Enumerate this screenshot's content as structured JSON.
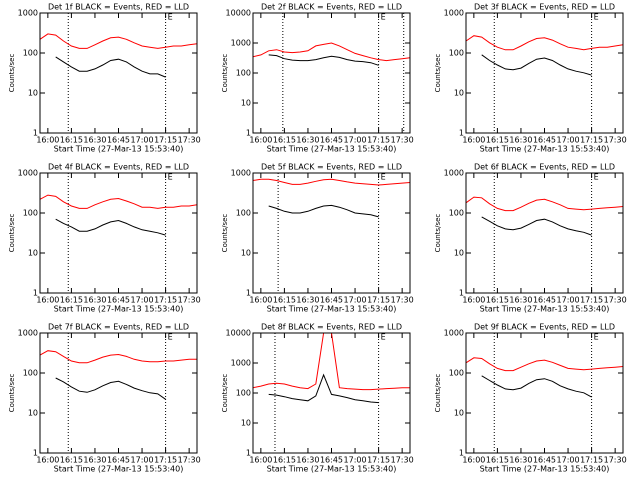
{
  "chart_data": [
    {
      "type": "line",
      "title": "Det 1f BLACK = Events, RED = LLD",
      "xlabel": "Start Time (27-Mar-13 15:53:40)",
      "ylabel": "Counts/sec",
      "log_y": true,
      "x": [
        "15:55",
        "16:00",
        "16:05",
        "16:10",
        "16:15",
        "16:20",
        "16:25",
        "16:30",
        "16:35",
        "16:40",
        "16:45",
        "16:50",
        "16:55",
        "17:00",
        "17:05",
        "17:10",
        "17:15",
        "17:20",
        "17:25",
        "17:30",
        "17:35"
      ],
      "series": [
        {
          "color": "#ff0000",
          "values": [
            220,
            300,
            280,
            200,
            150,
            130,
            130,
            160,
            200,
            240,
            250,
            220,
            180,
            150,
            140,
            130,
            140,
            150,
            150,
            160,
            170
          ]
        },
        {
          "color": "#000000",
          "values": [
            null,
            null,
            80,
            60,
            45,
            35,
            35,
            40,
            50,
            65,
            70,
            60,
            45,
            35,
            30,
            30,
            25,
            null,
            null,
            null,
            null
          ]
        }
      ],
      "xlim": [
        "15:55",
        "17:35"
      ],
      "xticks": [
        "16:00",
        "16:15",
        "16:30",
        "16:45",
        "17:00",
        "17:15",
        "17:30"
      ],
      "ylim": [
        1,
        1000
      ],
      "yticks": [
        1,
        10,
        100,
        1000
      ],
      "vlines": [
        "16:13",
        "17:15"
      ],
      "annotations": [
        {
          "x": "17:15",
          "text": "E"
        }
      ]
    },
    {
      "type": "line",
      "title": "Det 2f BLACK = Events, RED = LLD",
      "xlabel": "Start Time (27-Mar-13 15:53:40)",
      "ylabel": "Counts/sec",
      "log_y": true,
      "x": [
        "15:55",
        "16:00",
        "16:05",
        "16:10",
        "16:15",
        "16:20",
        "16:25",
        "16:30",
        "16:35",
        "16:40",
        "16:45",
        "16:50",
        "16:55",
        "17:00",
        "17:05",
        "17:10",
        "17:15",
        "17:20",
        "17:25",
        "17:30",
        "17:35"
      ],
      "series": [
        {
          "color": "#ff0000",
          "values": [
            350,
            400,
            550,
            600,
            500,
            480,
            500,
            550,
            800,
            900,
            1000,
            800,
            600,
            450,
            380,
            320,
            280,
            260,
            280,
            300,
            320
          ]
        },
        {
          "color": "#000000",
          "values": [
            null,
            null,
            400,
            380,
            300,
            270,
            260,
            260,
            280,
            320,
            360,
            330,
            280,
            250,
            240,
            220,
            180,
            null,
            null,
            null,
            null
          ]
        }
      ],
      "xlim": [
        "15:55",
        "17:35"
      ],
      "xticks": [
        "16:00",
        "16:15",
        "16:30",
        "16:45",
        "17:00",
        "17:15",
        "17:30"
      ],
      "ylim": [
        1,
        10000
      ],
      "yticks": [
        1,
        10,
        100,
        1000,
        10000
      ],
      "vlines": [
        "16:14",
        "17:15",
        "17:31"
      ],
      "annotations": [
        {
          "x": "17:15",
          "text": "E"
        }
      ]
    },
    {
      "type": "line",
      "title": "Det 3f BLACK = Events, RED = LLD",
      "xlabel": "Start Time (27-Mar-13 15:53:40)",
      "ylabel": "Counts/sec",
      "log_y": true,
      "x": [
        "15:55",
        "16:00",
        "16:05",
        "16:10",
        "16:15",
        "16:20",
        "16:25",
        "16:30",
        "16:35",
        "16:40",
        "16:45",
        "16:50",
        "16:55",
        "17:00",
        "17:05",
        "17:10",
        "17:15",
        "17:20",
        "17:25",
        "17:30",
        "17:35"
      ],
      "series": [
        {
          "color": "#ff0000",
          "values": [
            200,
            270,
            250,
            180,
            140,
            120,
            120,
            150,
            190,
            230,
            240,
            210,
            170,
            140,
            130,
            120,
            130,
            140,
            140,
            150,
            160
          ]
        },
        {
          "color": "#000000",
          "values": [
            null,
            null,
            90,
            65,
            50,
            40,
            38,
            42,
            55,
            70,
            75,
            65,
            50,
            40,
            35,
            32,
            28,
            null,
            null,
            null,
            null
          ]
        }
      ],
      "xlim": [
        "15:55",
        "17:35"
      ],
      "xticks": [
        "16:00",
        "16:15",
        "16:30",
        "16:45",
        "17:00",
        "17:15",
        "17:30"
      ],
      "ylim": [
        1,
        1000
      ],
      "yticks": [
        1,
        10,
        100,
        1000
      ],
      "vlines": [
        "16:13",
        "17:15"
      ],
      "annotations": [
        {
          "x": "17:15",
          "text": "E"
        }
      ]
    },
    {
      "type": "line",
      "title": "Det 4f BLACK = Events, RED = LLD",
      "xlabel": "Start Time (27-Mar-13 15:53:40)",
      "ylabel": "Counts/sec",
      "log_y": true,
      "x": [
        "15:55",
        "16:00",
        "16:05",
        "16:10",
        "16:15",
        "16:20",
        "16:25",
        "16:30",
        "16:35",
        "16:40",
        "16:45",
        "16:50",
        "16:55",
        "17:00",
        "17:05",
        "17:10",
        "17:15",
        "17:20",
        "17:25",
        "17:30",
        "17:35"
      ],
      "series": [
        {
          "color": "#ff0000",
          "values": [
            220,
            280,
            260,
            190,
            150,
            130,
            130,
            160,
            190,
            220,
            230,
            200,
            170,
            140,
            140,
            130,
            140,
            140,
            150,
            150,
            160
          ]
        },
        {
          "color": "#000000",
          "values": [
            null,
            null,
            70,
            55,
            45,
            35,
            35,
            40,
            50,
            60,
            65,
            55,
            45,
            38,
            35,
            32,
            28,
            null,
            null,
            null,
            null
          ]
        }
      ],
      "xlim": [
        "15:55",
        "17:35"
      ],
      "xticks": [
        "16:00",
        "16:15",
        "16:30",
        "16:45",
        "17:00",
        "17:15",
        "17:30"
      ],
      "ylim": [
        1,
        1000
      ],
      "yticks": [
        1,
        10,
        100,
        1000
      ],
      "vlines": [
        "16:13",
        "17:15"
      ],
      "annotations": [
        {
          "x": "17:15",
          "text": "E"
        }
      ]
    },
    {
      "type": "line",
      "title": "Det 5f BLACK = Events, RED = LLD",
      "xlabel": "Start Time (27-Mar-13 15:53:40)",
      "ylabel": "Counts/sec",
      "log_y": true,
      "x": [
        "15:55",
        "16:00",
        "16:05",
        "16:10",
        "16:15",
        "16:20",
        "16:25",
        "16:30",
        "16:35",
        "16:40",
        "16:45",
        "16:50",
        "16:55",
        "17:00",
        "17:05",
        "17:10",
        "17:15",
        "17:20",
        "17:25",
        "17:30",
        "17:35"
      ],
      "series": [
        {
          "color": "#ff0000",
          "values": [
            650,
            700,
            700,
            650,
            580,
            520,
            520,
            560,
            620,
            680,
            700,
            650,
            600,
            560,
            540,
            520,
            500,
            520,
            540,
            560,
            580
          ]
        },
        {
          "color": "#000000",
          "values": [
            null,
            null,
            150,
            130,
            110,
            100,
            100,
            110,
            130,
            150,
            155,
            140,
            120,
            100,
            95,
            90,
            80,
            null,
            null,
            null,
            null
          ]
        }
      ],
      "xlim": [
        "15:55",
        "17:35"
      ],
      "xticks": [
        "16:00",
        "16:15",
        "16:30",
        "16:45",
        "17:00",
        "17:15",
        "17:30"
      ],
      "ylim": [
        1,
        1000
      ],
      "yticks": [
        1,
        10,
        100,
        1000
      ],
      "vlines": [
        "16:11",
        "17:15"
      ],
      "annotations": [
        {
          "x": "17:15",
          "text": "E"
        }
      ]
    },
    {
      "type": "line",
      "title": "Det 6f BLACK = Events, RED = LLD",
      "xlabel": "Start Time (27-Mar-13 15:53:40)",
      "ylabel": "Counts/sec",
      "log_y": true,
      "x": [
        "15:55",
        "16:00",
        "16:05",
        "16:10",
        "16:15",
        "16:20",
        "16:25",
        "16:30",
        "16:35",
        "16:40",
        "16:45",
        "16:50",
        "16:55",
        "17:00",
        "17:05",
        "17:10",
        "17:15",
        "17:20",
        "17:25",
        "17:30",
        "17:35"
      ],
      "series": [
        {
          "color": "#ff0000",
          "values": [
            180,
            250,
            240,
            170,
            130,
            115,
            115,
            140,
            175,
            210,
            220,
            190,
            160,
            130,
            125,
            120,
            125,
            130,
            135,
            140,
            145
          ]
        },
        {
          "color": "#000000",
          "values": [
            null,
            null,
            80,
            62,
            48,
            40,
            38,
            42,
            52,
            65,
            70,
            60,
            48,
            40,
            36,
            33,
            28,
            null,
            null,
            null,
            null
          ]
        }
      ],
      "xlim": [
        "15:55",
        "17:35"
      ],
      "xticks": [
        "16:00",
        "16:15",
        "16:30",
        "16:45",
        "17:00",
        "17:15",
        "17:30"
      ],
      "ylim": [
        1,
        1000
      ],
      "yticks": [
        1,
        10,
        100,
        1000
      ],
      "vlines": [
        "16:13",
        "17:15"
      ],
      "annotations": [
        {
          "x": "17:15",
          "text": "E"
        }
      ]
    },
    {
      "type": "line",
      "title": "Det 7f BLACK = Events, RED = LLD",
      "xlabel": "Start Time (27-Mar-13 15:53:40)",
      "ylabel": "Counts/sec",
      "log_y": true,
      "x": [
        "15:55",
        "16:00",
        "16:05",
        "16:10",
        "16:15",
        "16:20",
        "16:25",
        "16:30",
        "16:35",
        "16:40",
        "16:45",
        "16:50",
        "16:55",
        "17:00",
        "17:05",
        "17:10",
        "17:15",
        "17:20",
        "17:25",
        "17:30",
        "17:35"
      ],
      "series": [
        {
          "color": "#ff0000",
          "values": [
            280,
            360,
            340,
            260,
            200,
            180,
            180,
            210,
            250,
            280,
            290,
            260,
            220,
            200,
            190,
            190,
            200,
            200,
            210,
            220,
            220
          ]
        },
        {
          "color": "#000000",
          "values": [
            null,
            null,
            75,
            60,
            45,
            35,
            33,
            38,
            48,
            58,
            62,
            52,
            42,
            36,
            32,
            30,
            22,
            null,
            null,
            null,
            null
          ]
        }
      ],
      "xlim": [
        "15:55",
        "17:35"
      ],
      "xticks": [
        "16:00",
        "16:15",
        "16:30",
        "16:45",
        "17:00",
        "17:15",
        "17:30"
      ],
      "ylim": [
        1,
        1000
      ],
      "yticks": [
        1,
        10,
        100,
        1000
      ],
      "vlines": [
        "16:13",
        "17:15"
      ],
      "annotations": [
        {
          "x": "17:15",
          "text": "E"
        }
      ]
    },
    {
      "type": "line",
      "title": "Det 8f BLACK = Events, RED = LLD",
      "xlabel": "Start Time (27-Mar-13 15:53:40)",
      "ylabel": "Counts/sec",
      "log_y": true,
      "x": [
        "15:55",
        "16:00",
        "16:05",
        "16:10",
        "16:15",
        "16:20",
        "16:25",
        "16:30",
        "16:35",
        "16:40",
        "16:45",
        "16:50",
        "16:55",
        "17:00",
        "17:05",
        "17:10",
        "17:15",
        "17:20",
        "17:25",
        "17:30",
        "17:35"
      ],
      "series": [
        {
          "color": "#ff0000",
          "values": [
            150,
            170,
            200,
            210,
            200,
            170,
            150,
            140,
            200,
            12000,
            12000,
            150,
            140,
            135,
            130,
            130,
            135,
            140,
            145,
            150,
            150
          ]
        },
        {
          "color": "#000000",
          "values": [
            null,
            null,
            90,
            85,
            75,
            65,
            60,
            55,
            80,
            400,
            90,
            80,
            70,
            60,
            55,
            50,
            48,
            null,
            null,
            null,
            null
          ]
        }
      ],
      "xlim": [
        "15:55",
        "17:35"
      ],
      "xticks": [
        "16:00",
        "16:15",
        "16:30",
        "16:45",
        "17:00",
        "17:15",
        "17:30"
      ],
      "ylim": [
        1,
        10000
      ],
      "yticks": [
        1,
        10,
        100,
        1000,
        10000
      ],
      "vlines": [
        "16:09",
        "17:15"
      ],
      "annotations": [
        {
          "x": "17:15",
          "text": "E"
        }
      ]
    },
    {
      "type": "line",
      "title": "Det 9f BLACK = Events, RED = LLD",
      "xlabel": "Start Time (27-Mar-13 15:53:40)",
      "ylabel": "Counts/sec",
      "log_y": true,
      "x": [
        "15:55",
        "16:00",
        "16:05",
        "16:10",
        "16:15",
        "16:20",
        "16:25",
        "16:30",
        "16:35",
        "16:40",
        "16:45",
        "16:50",
        "16:55",
        "17:00",
        "17:05",
        "17:10",
        "17:15",
        "17:20",
        "17:25",
        "17:30",
        "17:35"
      ],
      "series": [
        {
          "color": "#ff0000",
          "values": [
            180,
            240,
            230,
            170,
            130,
            115,
            115,
            140,
            170,
            200,
            210,
            185,
            155,
            130,
            125,
            120,
            125,
            130,
            135,
            140,
            145
          ]
        },
        {
          "color": "#000000",
          "values": [
            null,
            null,
            85,
            65,
            50,
            40,
            38,
            42,
            55,
            68,
            72,
            62,
            48,
            40,
            35,
            32,
            25,
            null,
            null,
            null,
            null
          ]
        }
      ],
      "xlim": [
        "15:55",
        "17:35"
      ],
      "xticks": [
        "16:00",
        "16:15",
        "16:30",
        "16:45",
        "17:00",
        "17:15",
        "17:30"
      ],
      "ylim": [
        1,
        1000
      ],
      "yticks": [
        1,
        10,
        100,
        1000
      ],
      "vlines": [
        "16:13",
        "17:15"
      ],
      "annotations": [
        {
          "x": "17:15",
          "text": "E"
        }
      ]
    }
  ]
}
